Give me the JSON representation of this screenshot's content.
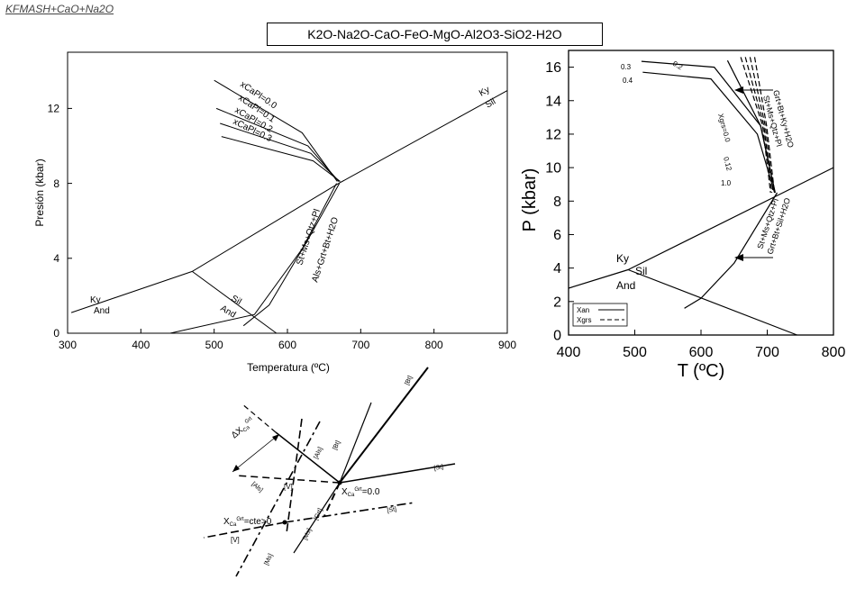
{
  "header_label": "KFMASH+CaO+Na2O",
  "system_title": "K2O-Na2O-CaO-FeO-MgO-Al2O3-SiO2-H2O",
  "chart_data": [
    {
      "type": "line",
      "xlabel": "Temperatura (ºC)",
      "ylabel": "Presión (kbar)",
      "xlim": [
        300,
        900
      ],
      "ylim": [
        0,
        15
      ],
      "x_ticks": [
        300,
        400,
        500,
        600,
        700,
        800,
        900
      ],
      "y_ticks": [
        0,
        4,
        8,
        12
      ],
      "series": [
        {
          "name": "Ky-Sil",
          "points": [
            [
              670,
              8.0
            ],
            [
              900,
              12.95
            ]
          ]
        },
        {
          "name": "Ky-And",
          "points": [
            [
              305,
              1.1
            ],
            [
              470,
              3.3
            ],
            [
              670,
              8.0
            ]
          ]
        },
        {
          "name": "And-Sil",
          "points": [
            [
              470,
              3.3
            ],
            [
              585,
              0.0
            ]
          ]
        },
        {
          "name": "xCaPl=0.0",
          "points": [
            [
              500,
              13.5
            ],
            [
              620,
              10.7
            ],
            [
              668,
              8.1
            ]
          ]
        },
        {
          "name": "xCaPl=0.1",
          "points": [
            [
              503,
              12.0
            ],
            [
              628,
              10.0
            ],
            [
              670,
              8.1
            ]
          ]
        },
        {
          "name": "xCaPl=0.2",
          "points": [
            [
              508,
              11.2
            ],
            [
              632,
              9.6
            ],
            [
              671,
              8.1
            ]
          ]
        },
        {
          "name": "xCaPl=0.3",
          "points": [
            [
              510,
              10.5
            ],
            [
              635,
              9.2
            ],
            [
              672,
              8.1
            ]
          ]
        },
        {
          "name": "St+Ms+Qtz+Pl",
          "points": [
            [
              440,
              0.0
            ],
            [
              555,
              1.0
            ],
            [
              620,
              4.5
            ],
            [
              667,
              8.0
            ]
          ]
        },
        {
          "name": "Als+Grt+Bt+H2O",
          "points": [
            [
              540,
              0.4
            ],
            [
              575,
              1.5
            ],
            [
              628,
              5.0
            ],
            [
              671,
              8.0
            ]
          ]
        }
      ],
      "labels": [
        "xCaPl=0.0",
        "xCaPl=0.1",
        "xCaPl=0.2",
        "xCaPl=0.3",
        "St+Ms+Qtz+Pl",
        "Als+Grt+Bt+H2O",
        "Ky",
        "Sil",
        "And"
      ],
      "label_ky_sil_top": "Ky",
      "label_sil_top": "Sil",
      "label_ky_left": "Ky",
      "label_and_left": "And",
      "label_sil_mid": "Sil",
      "label_and_mid": "And",
      "grid": false
    },
    {
      "type": "line",
      "xlabel": "T (ºC)",
      "ylabel": "P (kbar)",
      "xlim": [
        400,
        800
      ],
      "ylim": [
        0,
        17
      ],
      "x_ticks": [
        400,
        500,
        600,
        700,
        800
      ],
      "y_ticks": [
        0,
        2,
        4,
        6,
        8,
        10,
        12,
        14,
        16
      ],
      "legend": {
        "placement": "bottom-left",
        "entries": [
          "Xan",
          "Xgrs"
        ]
      },
      "series": [
        {
          "name": "Ky-Sil",
          "points": [
            [
              490,
              3.9
            ],
            [
              800,
              10.0
            ]
          ]
        },
        {
          "name": "Ky-And",
          "points": [
            [
              400,
              2.8
            ],
            [
              490,
              3.9
            ]
          ]
        },
        {
          "name": "And-Sil",
          "points": [
            [
              490,
              3.9
            ],
            [
              745,
              0.0
            ]
          ]
        },
        {
          "name": "Xan 0.3",
          "points": [
            [
              510,
              16.35
            ],
            [
              620,
              16.0
            ],
            [
              690,
              12.5
            ],
            [
              712,
              8.5
            ]
          ]
        },
        {
          "name": "Xan 0.4",
          "points": [
            [
              512,
              15.7
            ],
            [
              615,
              15.3
            ],
            [
              685,
              12.0
            ],
            [
              711,
              8.5
            ]
          ]
        },
        {
          "name": "Xan 0.2",
          "points": [
            [
              640,
              16.4
            ],
            [
              690,
              12.5
            ],
            [
              712,
              8.5
            ]
          ]
        },
        {
          "name": "reaction lower",
          "points": [
            [
              575,
              1.6
            ],
            [
              600,
              2.2
            ],
            [
              650,
              4.3
            ],
            [
              715,
              8.5
            ]
          ]
        }
      ],
      "labels": [
        "0.3",
        "0.4",
        "0.2",
        "Xgrs=0.0",
        "0.12",
        "1.0",
        "Grt+Bt+Ky+H2O",
        "St+Ms+Qtz+Pl",
        "St+Ms+Qtz+Pl",
        "Grt+Bt+Sil+H2O",
        "Ky",
        "Sil",
        "And"
      ],
      "label_03": "0.3",
      "label_04": "0.4",
      "label_02": "0.2",
      "label_xgrs": "Xgrs=0.0",
      "label_012": "0.12",
      "label_10": "1.0",
      "upper_reaction_top": "Grt+Bt+Ky+H2O",
      "upper_reaction_bottom": "St+Ms+Qtz+Pl",
      "lower_reaction_top": "St+Ms+Qtz+Pl",
      "lower_reaction_bottom": "Grt+Bt+Sil+H2O",
      "label_ky": "Ky",
      "label_sil": "Sil",
      "label_and": "And",
      "legend_xan": "Xan",
      "legend_xgrs": "Xgrs",
      "grid": false
    },
    {
      "type": "diagram",
      "labels": [
        "[St]",
        "[Als]",
        "[Bt]",
        "[V]",
        "[Grt]",
        "[Ms]",
        "ΔXCa Grt",
        "XCa Grt=0.0",
        "XCa Grt=cte>0"
      ],
      "delta_label": "ΔX",
      "delta_sub": "Ca",
      "delta_sup": "Grt",
      "x00_label": "X",
      "x00_sub": "Ca",
      "x00_sup": "Grt",
      "x00_val": "=0.0",
      "xcte_label": "X",
      "xcte_sub": "Ca",
      "xcte_sup": "Grt",
      "xcte_val": "=cte>0",
      "l_st_top": "[St]",
      "l_st_mid": "[St]",
      "l_bt_top": "[Bt]",
      "l_bt_mid": "[Bt]",
      "l_als_mid": "[Als]",
      "l_als_left": "[Als]",
      "l_v_mid": "[V]",
      "l_v_left": "[V]",
      "l_grt": "[Grt]",
      "l_ms_mid": "[Ms]",
      "l_ms_bot": "[Ms]"
    }
  ]
}
